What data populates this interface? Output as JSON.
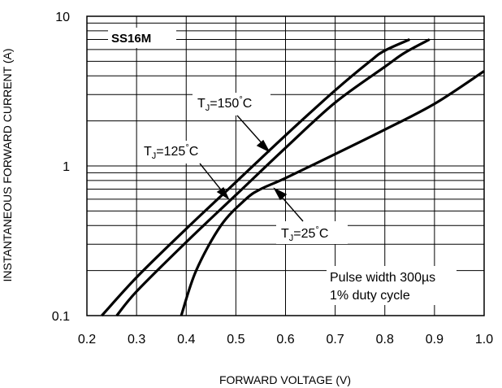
{
  "chart_data": {
    "type": "line",
    "title": "",
    "model_label": "SS16M",
    "xlabel": "FORWARD VOLTAGE (V)",
    "ylabel": "INSTANTANEOUS FORWARD CURRENT (A)",
    "xlim": [
      0.2,
      1.0
    ],
    "ylim": [
      0.1,
      10
    ],
    "y_scale": "log",
    "grid": true,
    "x_ticks": [
      {
        "v": 0.2,
        "label": "0.2"
      },
      {
        "v": 0.3,
        "label": "0.3"
      },
      {
        "v": 0.4,
        "label": "0.4"
      },
      {
        "v": 0.5,
        "label": "0.5"
      },
      {
        "v": 0.6,
        "label": "0.6"
      },
      {
        "v": 0.7,
        "label": "0.7"
      },
      {
        "v": 0.8,
        "label": "0.8"
      },
      {
        "v": 0.9,
        "label": "0.9"
      },
      {
        "v": 1.0,
        "label": "1.0"
      }
    ],
    "y_ticks": [
      {
        "v": 0.1,
        "label": "0.1"
      },
      {
        "v": 1,
        "label": "1"
      },
      {
        "v": 10,
        "label": "10"
      }
    ],
    "series": [
      {
        "tj": "150",
        "points": [
          [
            0.23,
            0.1
          ],
          [
            0.3,
            0.18
          ],
          [
            0.4,
            0.38
          ],
          [
            0.5,
            0.78
          ],
          [
            0.6,
            1.6
          ],
          [
            0.7,
            3.2
          ],
          [
            0.77,
            5.0
          ],
          [
            0.8,
            5.9
          ],
          [
            0.85,
            7.0
          ]
        ]
      },
      {
        "tj": "125",
        "points": [
          [
            0.26,
            0.1
          ],
          [
            0.3,
            0.145
          ],
          [
            0.4,
            0.31
          ],
          [
            0.5,
            0.64
          ],
          [
            0.6,
            1.32
          ],
          [
            0.7,
            2.65
          ],
          [
            0.8,
            4.6
          ],
          [
            0.84,
            5.7
          ],
          [
            0.89,
            7.0
          ]
        ]
      },
      {
        "tj": "25",
        "points": [
          [
            0.39,
            0.1
          ],
          [
            0.42,
            0.2
          ],
          [
            0.47,
            0.4
          ],
          [
            0.52,
            0.6
          ],
          [
            0.55,
            0.7
          ],
          [
            0.6,
            0.83
          ],
          [
            0.7,
            1.2
          ],
          [
            0.8,
            1.75
          ],
          [
            0.9,
            2.6
          ],
          [
            1.0,
            4.3
          ]
        ]
      }
    ],
    "annotations": {
      "tj150": {
        "prefix": "T",
        "sub": "J",
        "value": "=150",
        "deg": "°",
        "unit": "C"
      },
      "tj125": {
        "prefix": "T",
        "sub": "J",
        "value": "=125",
        "deg": "°",
        "unit": "C"
      },
      "tj25": {
        "prefix": "T",
        "sub": "J",
        "value": "=25",
        "deg": "°",
        "unit": "C"
      },
      "pulse_line1": "Pulse width 300µs",
      "pulse_line2": "1% duty cycle"
    }
  }
}
